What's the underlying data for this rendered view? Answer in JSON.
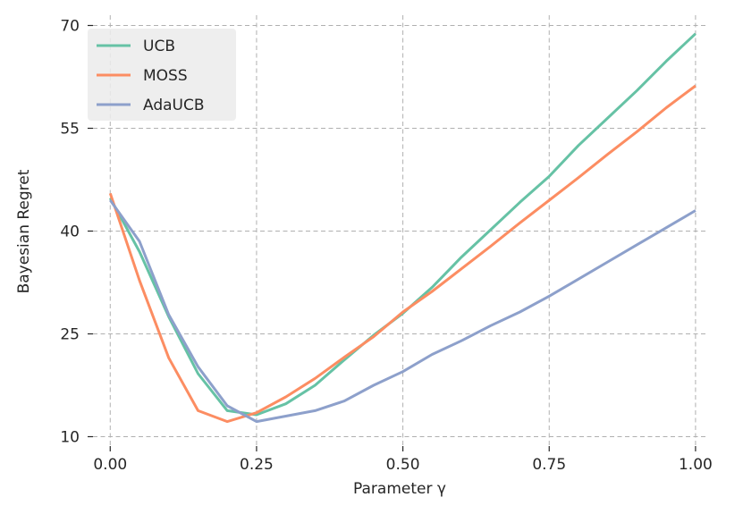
{
  "chart_data": {
    "type": "line",
    "title": "",
    "xlabel": "Parameter γ",
    "ylabel": "Bayesian Regret",
    "xlim": [
      -0.06,
      1.02
    ],
    "ylim": [
      8.5,
      71.5
    ],
    "xticks": [
      0.0,
      0.25,
      0.5,
      0.75,
      1.0
    ],
    "xtick_labels": [
      "0.00",
      "0.25",
      "0.50",
      "0.75",
      "1.00"
    ],
    "yticks": [
      10,
      25,
      40,
      55,
      70
    ],
    "ytick_labels": [
      "10",
      "25",
      "40",
      "55",
      "70"
    ],
    "grid": true,
    "legend_position": "top-left",
    "x": [
      0.0,
      0.05,
      0.1,
      0.15,
      0.2,
      0.25,
      0.3,
      0.35,
      0.4,
      0.45,
      0.5,
      0.55,
      0.6,
      0.65,
      0.7,
      0.75,
      0.8,
      0.85,
      0.9,
      0.95,
      1.0
    ],
    "series": [
      {
        "name": "UCB",
        "color": "#66c2a5",
        "values": [
          44.8,
          37.0,
          27.5,
          19.2,
          13.8,
          13.2,
          14.8,
          17.5,
          21.2,
          24.8,
          28.0,
          31.8,
          36.2,
          40.2,
          44.2,
          48.0,
          52.5,
          56.5,
          60.5,
          64.8,
          68.8
        ]
      },
      {
        "name": "MOSS",
        "color": "#fc8d62",
        "values": [
          45.5,
          32.8,
          21.5,
          13.8,
          12.2,
          13.5,
          15.8,
          18.5,
          21.6,
          24.6,
          28.2,
          31.2,
          34.5,
          37.8,
          41.2,
          44.5,
          47.8,
          51.2,
          54.5,
          58.0,
          61.2
        ]
      },
      {
        "name": "AdaUCB",
        "color": "#8da0cb",
        "values": [
          44.5,
          38.5,
          27.8,
          20.2,
          14.5,
          12.2,
          13.0,
          13.8,
          15.2,
          17.5,
          19.5,
          22.0,
          24.0,
          26.2,
          28.2,
          30.5,
          33.0,
          35.5,
          38.0,
          40.5,
          43.0
        ]
      }
    ]
  }
}
